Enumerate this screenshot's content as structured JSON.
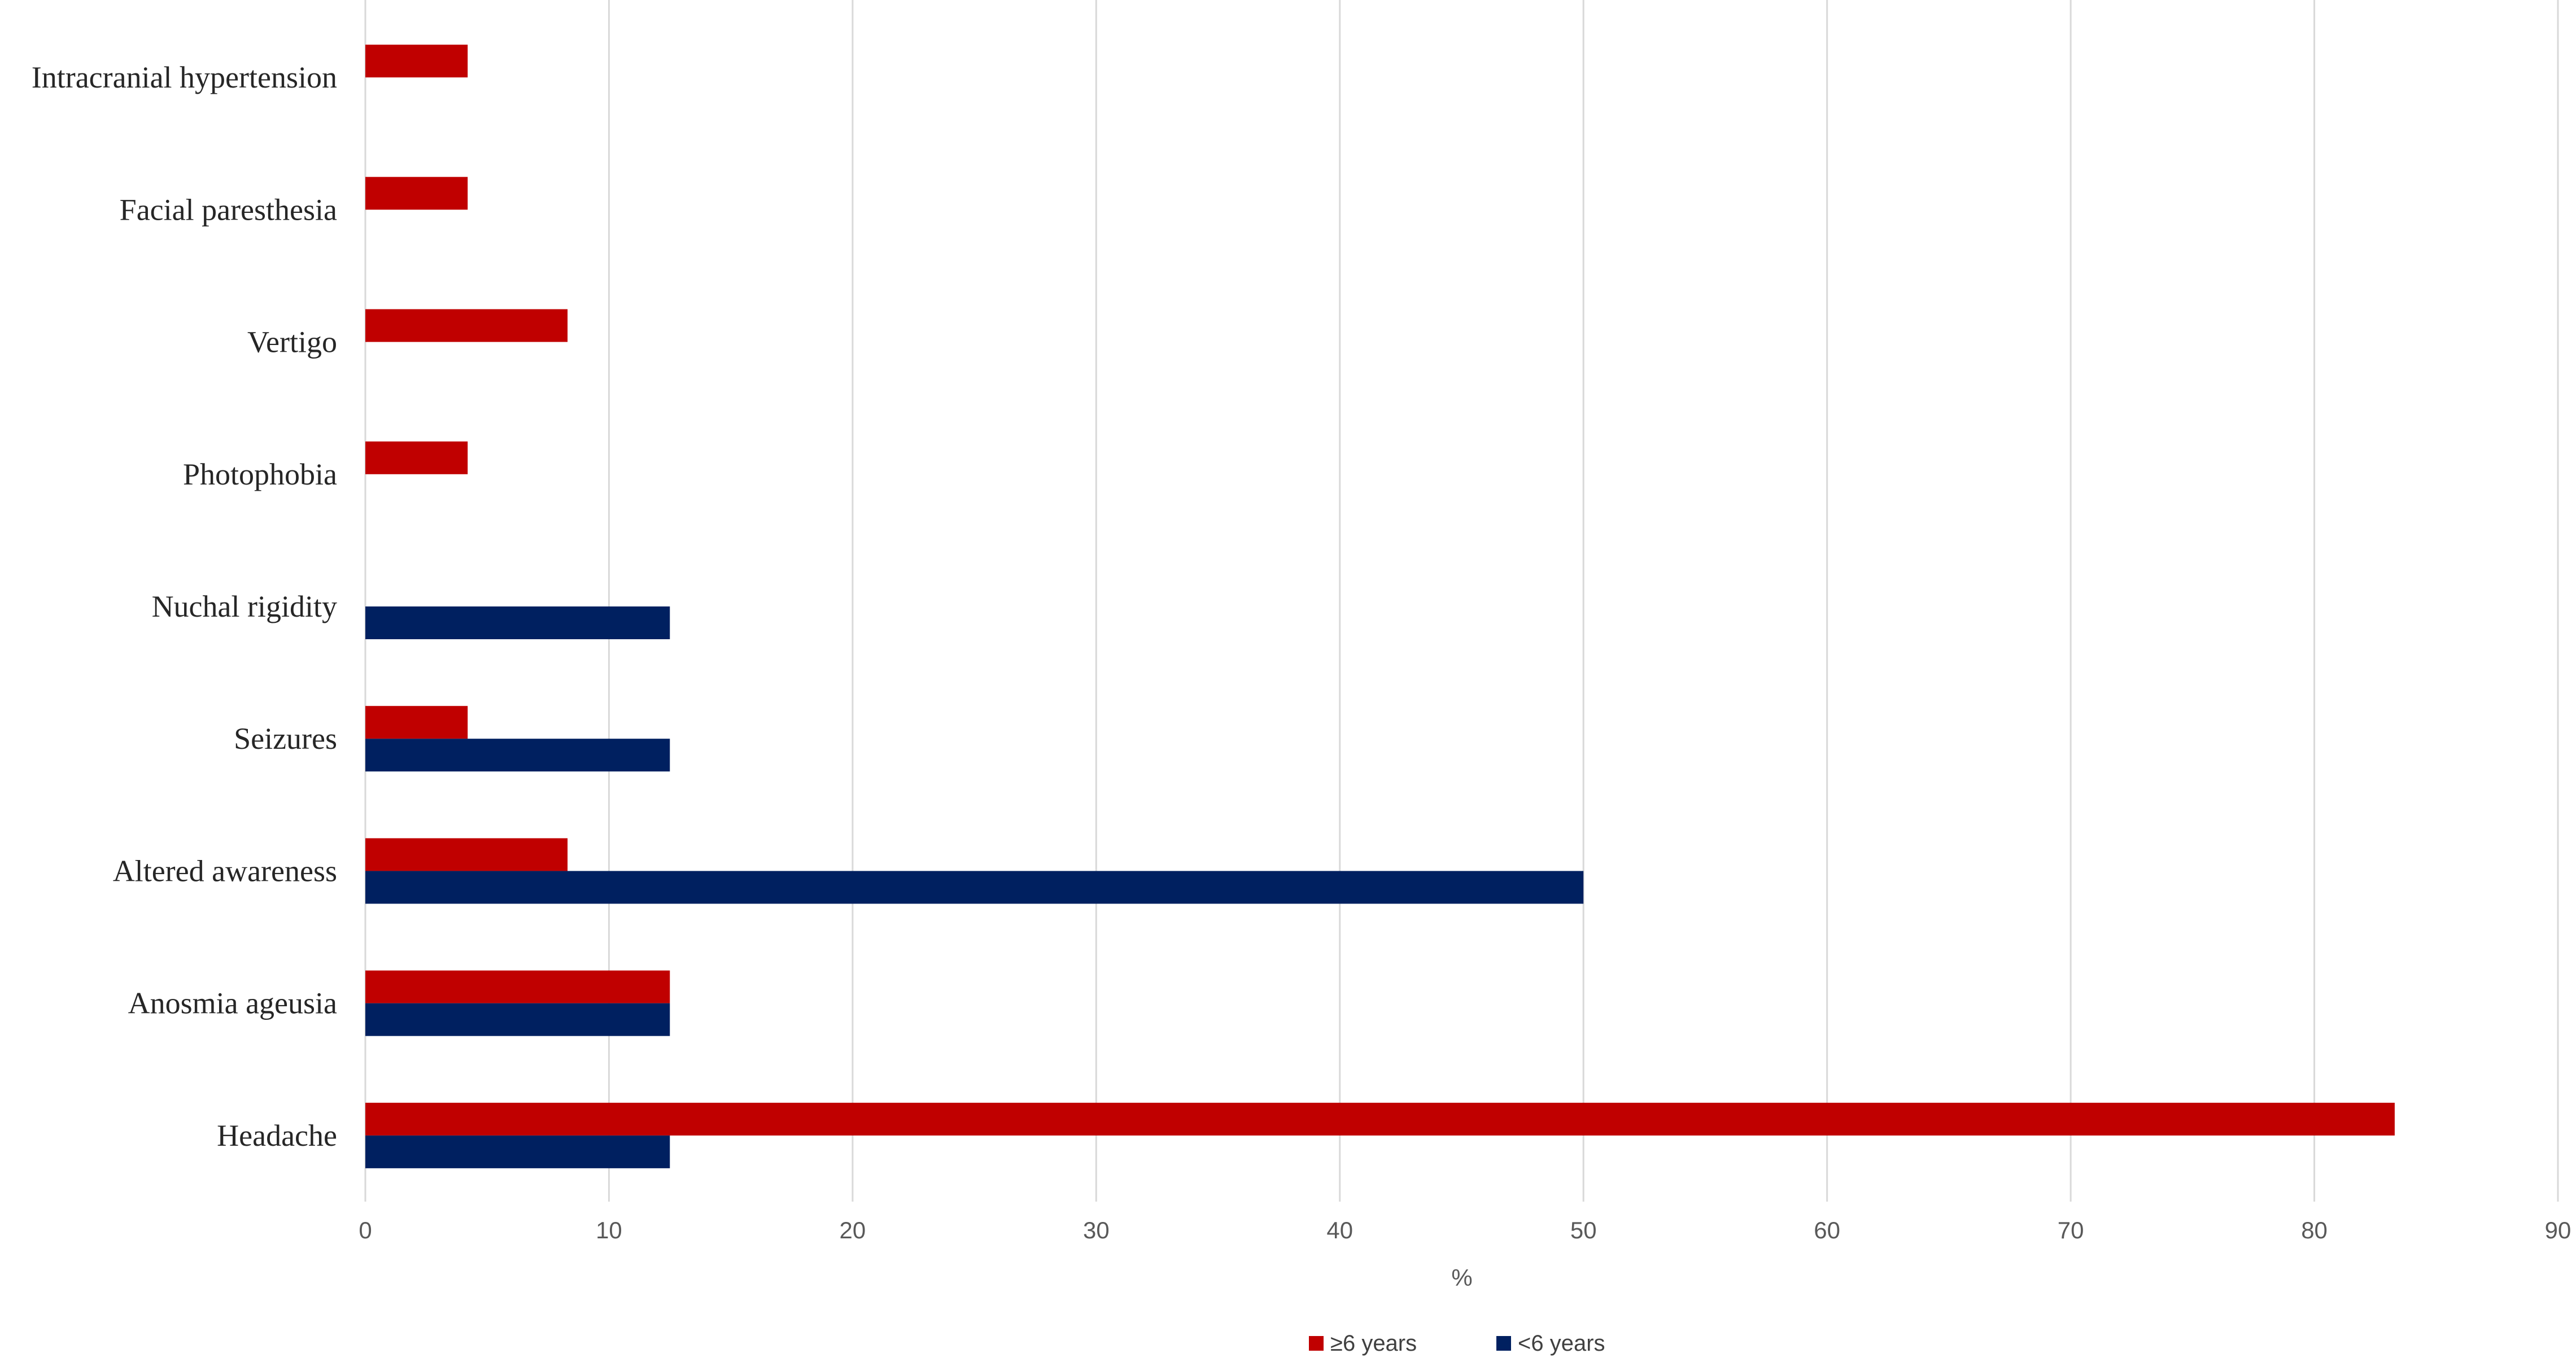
{
  "chart_data": {
    "type": "bar",
    "orientation": "horizontal",
    "categories": [
      "Headache",
      "Anosmia ageusia",
      "Altered awareness",
      "Seizures",
      "Nuchal rigidity",
      "Photophobia",
      "Vertigo",
      "Facial paresthesia",
      "Intracranial hypertension"
    ],
    "series": [
      {
        "name": "≥6 years",
        "color": "#c00000",
        "values": [
          83.3,
          12.5,
          8.3,
          4.2,
          0,
          4.2,
          8.3,
          4.2,
          4.2
        ]
      },
      {
        "name": "<6 years",
        "color": "#002060",
        "values": [
          12.5,
          12.5,
          50,
          12.5,
          12.5,
          0,
          0,
          0,
          0
        ]
      }
    ],
    "xlabel": "%",
    "ylabel": "",
    "xlim": [
      0,
      90
    ],
    "xticks": [
      "0",
      "10",
      "20",
      "30",
      "40",
      "50",
      "60",
      "70",
      "80",
      "90"
    ],
    "grid": true,
    "legend_position": "bottom"
  }
}
